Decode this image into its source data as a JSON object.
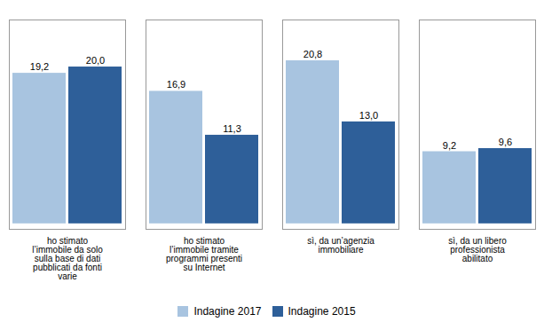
{
  "chart_data": {
    "type": "bar",
    "categories": [
      "ho stimato\nl’immobile da solo\nsulla base di dati\npubblicati da fonti\nvarie",
      "ho stimato\nl’immobile tramite\nprogrammi presenti\nsu Internet",
      "sì, da un’agenzia\nimmobiliare",
      "sì, da un libero\nprofessionista\nabilitato"
    ],
    "series": [
      {
        "name": "Indagine 2017",
        "color": "#a8c4e0",
        "values": [
          19.2,
          16.9,
          20.8,
          9.2
        ],
        "value_labels": [
          "19,2",
          "16,9",
          "20,8",
          "9,2"
        ]
      },
      {
        "name": "Indagine 2015",
        "color": "#2e5f99",
        "values": [
          20.0,
          11.3,
          13.0,
          9.6
        ],
        "value_labels": [
          "20,0",
          "11,3",
          "13,0",
          "9,6"
        ]
      }
    ],
    "ylim": [
      -0.7,
      26
    ],
    "tick_labels": "x",
    "data_labels": true,
    "legend": "bottom",
    "grid": false
  }
}
